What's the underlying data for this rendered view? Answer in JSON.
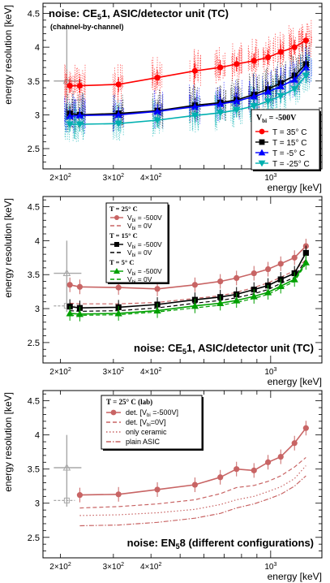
{
  "chart_data": [
    {
      "type": "line",
      "title": "noise: CE",
      "title_sub": "5",
      "title_rest": "1, ASIC/detector unit (TC)",
      "subtitle": "(channel-by-channel)",
      "xlabel": "energy [keV]",
      "ylabel": "energy resolution [keV]",
      "xscale": "log",
      "xlim": [
        175,
        1480
      ],
      "ylim": [
        2.2,
        4.65
      ],
      "x_ticks": [
        {
          "value": 200,
          "label_base": "2×10",
          "label_exp": "2"
        },
        {
          "value": 300,
          "label_base": "3×10",
          "label_exp": "2"
        },
        {
          "value": 400,
          "label_base": "4×10",
          "label_exp": "2"
        },
        {
          "value": 1000,
          "label_base": "10",
          "label_exp": "3"
        }
      ],
      "y_ticks": [
        "2.5",
        "3",
        "3.5",
        "4",
        "4.5"
      ],
      "legend_title": "V",
      "legend_title_sub": "bi",
      "legend_title_rest": " = -500V",
      "legend_position": "right",
      "series": [
        {
          "name": "T = 35° C",
          "color": "#ff0000",
          "marker": "circle",
          "x": [
            215,
            232,
            312,
            420,
            560,
            680,
            770,
            880,
            980,
            1080,
            1200,
            1310
          ],
          "y": [
            3.43,
            3.43,
            3.45,
            3.55,
            3.65,
            3.7,
            3.75,
            3.8,
            3.85,
            3.93,
            4.0,
            4.1
          ]
        },
        {
          "name": "T = 15° C",
          "color": "#000000",
          "marker": "square",
          "x": [
            215,
            232,
            312,
            420,
            560,
            680,
            770,
            880,
            980,
            1080,
            1200,
            1310
          ],
          "y": [
            3.02,
            3.0,
            3.02,
            3.06,
            3.14,
            3.18,
            3.22,
            3.3,
            3.38,
            3.47,
            3.58,
            3.75
          ]
        },
        {
          "name": "T = -5° C",
          "color": "#0000ff",
          "marker": "triangle",
          "x": [
            215,
            232,
            312,
            420,
            560,
            680,
            770,
            880,
            980,
            1080,
            1200,
            1310
          ],
          "y": [
            2.98,
            2.99,
            3.0,
            3.05,
            3.12,
            3.16,
            3.2,
            3.27,
            3.34,
            3.42,
            3.52,
            3.7
          ]
        },
        {
          "name": "T = -25° C",
          "color": "#00b0b0",
          "marker": "triangle-down",
          "x": [
            215,
            232,
            312,
            420,
            560,
            680,
            770,
            880,
            980,
            1080,
            1200,
            1310
          ],
          "y": [
            2.86,
            2.86,
            2.87,
            2.92,
            2.99,
            3.03,
            3.07,
            3.13,
            3.2,
            3.28,
            3.38,
            3.58
          ]
        }
      ]
    },
    {
      "type": "line",
      "title": "noise: CE",
      "title_sub": "5",
      "title_rest": "1, ASIC/detector unit (TC)",
      "xlabel": "energy [keV]",
      "ylabel": "energy resolution [keV]",
      "xscale": "log",
      "xlim": [
        175,
        1480
      ],
      "ylim": [
        2.2,
        4.65
      ],
      "x_ticks": [
        {
          "value": 200,
          "label_base": "2×10",
          "label_exp": "2"
        },
        {
          "value": 300,
          "label_base": "3×10",
          "label_exp": "2"
        },
        {
          "value": 400,
          "label_base": "4×10",
          "label_exp": "2"
        },
        {
          "value": 1000,
          "label_base": "10",
          "label_exp": "3"
        }
      ],
      "y_ticks": [
        "2.5",
        "3",
        "3.5",
        "4",
        "4.5"
      ],
      "legend_position": "top-left",
      "legend_groups": [
        {
          "title": "T = 25° C",
          "entries": [
            {
              "name_base": "V",
              "name_sub": "bi",
              "name_rest": " = -500V",
              "series": 0
            },
            {
              "name_base": "V",
              "name_sub": "bi",
              "name_rest": " = 0V",
              "series": 1
            }
          ]
        },
        {
          "title": "T = 15° C",
          "entries": [
            {
              "name_base": "V",
              "name_sub": "bi",
              "name_rest": " = -500V",
              "series": 2
            },
            {
              "name_base": "V",
              "name_sub": "bi",
              "name_rest": " = 0V",
              "series": 3
            }
          ]
        },
        {
          "title": "T = 5° C",
          "entries": [
            {
              "name_base": "V",
              "name_sub": "bi",
              "name_rest": " = -500V",
              "series": 4
            },
            {
              "name_base": "V",
              "name_sub": "bi",
              "name_rest": " = 0V",
              "series": 5
            }
          ]
        }
      ],
      "series": [
        {
          "color": "#c86464",
          "marker": "circle",
          "dash": false,
          "x": [
            215,
            232,
            312,
            420,
            560,
            680,
            770,
            880,
            980,
            1080,
            1200,
            1310
          ],
          "y": [
            3.35,
            3.32,
            3.31,
            3.29,
            3.35,
            3.4,
            3.45,
            3.52,
            3.58,
            3.66,
            3.75,
            3.92
          ]
        },
        {
          "color": "#c86464",
          "marker": "none",
          "dash": true,
          "x": [
            215,
            232,
            312,
            420,
            560,
            680,
            770,
            880,
            980,
            1080,
            1200,
            1310
          ],
          "y": [
            3.08,
            3.07,
            3.07,
            3.09,
            3.15,
            3.19,
            3.24,
            3.31,
            3.38,
            3.46,
            3.56,
            3.72
          ]
        },
        {
          "color": "#000000",
          "marker": "square",
          "dash": false,
          "x": [
            215,
            232,
            312,
            420,
            560,
            680,
            770,
            880,
            980,
            1080,
            1200,
            1310
          ],
          "y": [
            3.03,
            3.01,
            3.02,
            3.06,
            3.13,
            3.17,
            3.21,
            3.28,
            3.34,
            3.43,
            3.52,
            3.82
          ]
        },
        {
          "color": "#000000",
          "marker": "none",
          "dash": true,
          "x": [
            215,
            232,
            312,
            420,
            560,
            680,
            770,
            880,
            980,
            1080,
            1200,
            1310
          ],
          "y": [
            2.97,
            2.96,
            2.97,
            3.01,
            3.08,
            3.12,
            3.16,
            3.22,
            3.28,
            3.37,
            3.46,
            3.72
          ]
        },
        {
          "color": "#00a000",
          "marker": "triangle",
          "dash": false,
          "x": [
            215,
            232,
            312,
            420,
            560,
            680,
            770,
            880,
            980,
            1080,
            1200,
            1310
          ],
          "y": [
            2.93,
            2.92,
            2.93,
            2.97,
            3.04,
            3.08,
            3.12,
            3.18,
            3.24,
            3.33,
            3.43,
            3.68
          ]
        },
        {
          "color": "#00a000",
          "marker": "none",
          "dash": true,
          "x": [
            215,
            232,
            312,
            420,
            560,
            680,
            770,
            880,
            980,
            1080,
            1200,
            1310
          ],
          "y": [
            2.9,
            2.9,
            2.91,
            2.95,
            3.01,
            3.05,
            3.09,
            3.15,
            3.21,
            3.3,
            3.4,
            3.66
          ]
        }
      ]
    },
    {
      "type": "line",
      "title": "noise: EN",
      "title_sub": "5",
      "title_rest": "8 (different configurations)",
      "xlabel": "energy [keV]",
      "ylabel": "energy resolution [keV]",
      "xscale": "log",
      "xlim": [
        175,
        1480
      ],
      "ylim": [
        2.2,
        4.65
      ],
      "x_ticks": [
        {
          "value": 200,
          "label_base": "2×10",
          "label_exp": "2"
        },
        {
          "value": 300,
          "label_base": "3×10",
          "label_exp": "2"
        },
        {
          "value": 400,
          "label_base": "4×10",
          "label_exp": "2"
        },
        {
          "value": 1000,
          "label_base": "10",
          "label_exp": "3"
        }
      ],
      "y_ticks": [
        "2.5",
        "3",
        "3.5",
        "4",
        "4.5"
      ],
      "legend_title": "T = 25° C (lab)",
      "legend_position": "top-center",
      "legend_entries": [
        {
          "name_base": "det. [V",
          "name_sub": "bi",
          "name_rest": " =-500V]",
          "series": 0
        },
        {
          "name_base": "det. [V",
          "name_sub": "bi",
          "name_rest": "=0V]",
          "series": 1
        },
        {
          "name_base": "only ceramic",
          "name_sub": "",
          "name_rest": "",
          "series": 2
        },
        {
          "name_base": "plain ASIC",
          "name_sub": "",
          "name_rest": "",
          "series": 3
        }
      ],
      "series": [
        {
          "color": "#c86464",
          "marker": "circle",
          "dash": "none",
          "x": [
            232,
            312,
            420,
            560,
            680,
            770,
            880,
            980,
            1080,
            1200,
            1310
          ],
          "y": [
            3.12,
            3.13,
            3.2,
            3.27,
            3.38,
            3.5,
            3.48,
            3.6,
            3.68,
            3.88,
            4.1
          ]
        },
        {
          "color": "#c86464",
          "marker": "none",
          "dash": "dash",
          "x": [
            232,
            312,
            420,
            560,
            680,
            770,
            880,
            980,
            1080,
            1200,
            1310
          ],
          "y": [
            2.93,
            2.95,
            2.99,
            3.05,
            3.14,
            3.23,
            3.26,
            3.32,
            3.4,
            3.53,
            3.67
          ]
        },
        {
          "color": "#c86464",
          "marker": "none",
          "dash": "dot",
          "x": [
            232,
            312,
            420,
            560,
            680,
            770,
            880,
            980,
            1080,
            1200,
            1310
          ],
          "y": [
            2.82,
            2.83,
            2.86,
            2.91,
            2.98,
            3.05,
            3.1,
            3.17,
            3.24,
            3.36,
            3.55
          ]
        },
        {
          "color": "#c86464",
          "marker": "none",
          "dash": "dashdot",
          "x": [
            232,
            312,
            420,
            560,
            680,
            770,
            880,
            980,
            1080,
            1200,
            1310
          ],
          "y": [
            2.67,
            2.68,
            2.72,
            2.78,
            2.85,
            2.93,
            2.99,
            3.06,
            3.13,
            3.25,
            3.4
          ]
        }
      ]
    }
  ]
}
